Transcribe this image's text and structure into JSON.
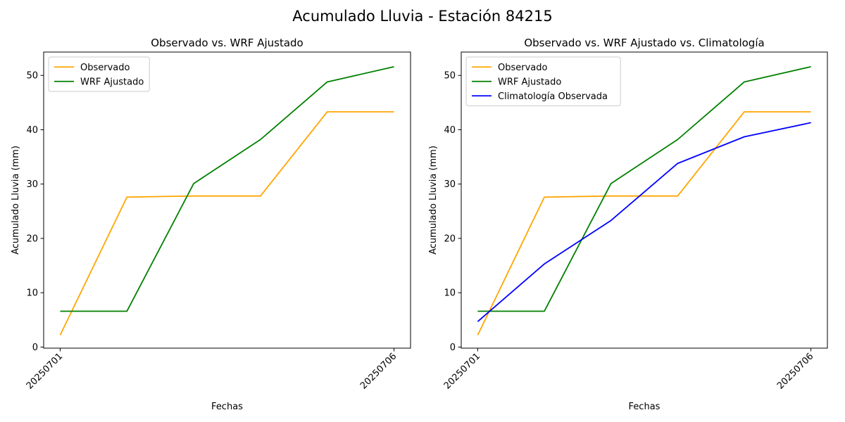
{
  "figure": {
    "suptitle": "Acumulado Lluvia - Estación 84215"
  },
  "colors": {
    "observado": "#ffa500",
    "wrf": "#008000",
    "clim": "#0000ff"
  },
  "chart_data": [
    {
      "type": "line",
      "title": "Observado vs. WRF Ajustado",
      "xlabel": "Fechas",
      "ylabel": "Acumulado Lluvia (mm)",
      "x": [
        "20250701",
        "20250702",
        "20250703",
        "20250704",
        "20250705",
        "20250706"
      ],
      "xticks": [
        "20250701",
        "20250706"
      ],
      "yticks": [
        0,
        10,
        20,
        30,
        40,
        50
      ],
      "ylim": [
        -0.2,
        54.3
      ],
      "legend": "upper-left",
      "series": [
        {
          "name": "Observado",
          "color": "#ffa500",
          "values": [
            2.2,
            27.6,
            27.8,
            27.8,
            43.3,
            43.3
          ]
        },
        {
          "name": "WRF Ajustado",
          "color": "#008000",
          "values": [
            6.6,
            6.6,
            30.1,
            38.2,
            48.8,
            51.6
          ]
        }
      ]
    },
    {
      "type": "line",
      "title": "Observado vs. WRF Ajustado vs. Climatología",
      "xlabel": "Fechas",
      "ylabel": "Acumulado Lluvia (mm)",
      "x": [
        "20250701",
        "20250702",
        "20250703",
        "20250704",
        "20250705",
        "20250706"
      ],
      "xticks": [
        "20250701",
        "20250706"
      ],
      "yticks": [
        0,
        10,
        20,
        30,
        40,
        50
      ],
      "ylim": [
        -0.2,
        54.3
      ],
      "legend": "upper-left",
      "series": [
        {
          "name": "Observado",
          "color": "#ffa500",
          "values": [
            2.2,
            27.6,
            27.8,
            27.8,
            43.3,
            43.3
          ]
        },
        {
          "name": "WRF Ajustado",
          "color": "#008000",
          "values": [
            6.6,
            6.6,
            30.1,
            38.2,
            48.8,
            51.6
          ]
        },
        {
          "name": "Climatología Observada",
          "color": "#0000ff",
          "values": [
            4.7,
            15.3,
            23.3,
            33.8,
            38.7,
            41.3
          ]
        }
      ]
    }
  ]
}
